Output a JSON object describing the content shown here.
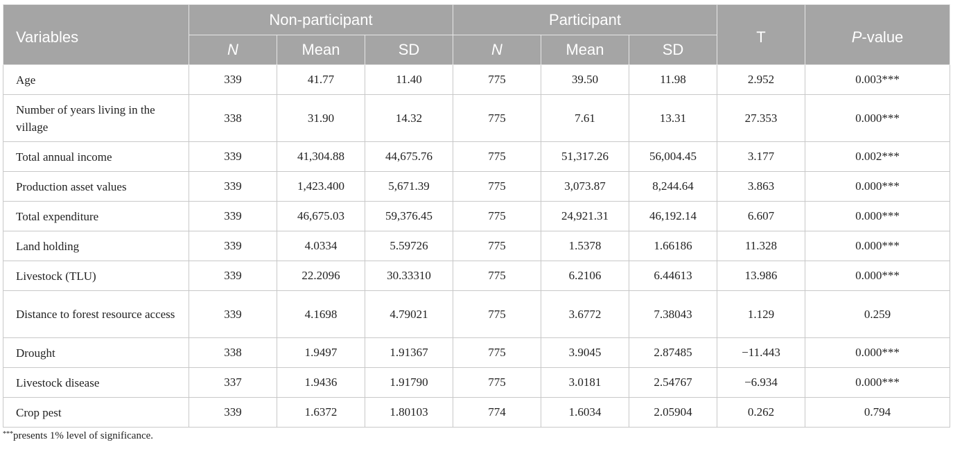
{
  "header": {
    "variables": "Variables",
    "non_participant": "Non-participant",
    "participant": "Participant",
    "t": "T",
    "p_value_italic": "P",
    "p_value_rest": "-value",
    "n": "N",
    "mean": "Mean",
    "sd": "SD"
  },
  "rows": [
    {
      "variable": "Age",
      "np_n": "339",
      "np_mean": "41.77",
      "np_sd": "11.40",
      "p_n": "775",
      "p_mean": "39.50",
      "p_sd": "11.98",
      "t": "2.952",
      "p_value": "0.003***"
    },
    {
      "variable": "Number of years living in the village",
      "np_n": "338",
      "np_mean": "31.90",
      "np_sd": "14.32",
      "p_n": "775",
      "p_mean": "7.61",
      "p_sd": "13.31",
      "t": "27.353",
      "p_value": "0.000***"
    },
    {
      "variable": "Total annual income",
      "np_n": "339",
      "np_mean": "41,304.88",
      "np_sd": "44,675.76",
      "p_n": "775",
      "p_mean": "51,317.26",
      "p_sd": "56,004.45",
      "t": "3.177",
      "p_value": "0.002***"
    },
    {
      "variable": "Production asset values",
      "np_n": "339",
      "np_mean": "1,423.400",
      "np_sd": "5,671.39",
      "p_n": "775",
      "p_mean": "3,073.87",
      "p_sd": "8,244.64",
      "t": "3.863",
      "p_value": "0.000***"
    },
    {
      "variable": "Total expenditure",
      "np_n": "339",
      "np_mean": "46,675.03",
      "np_sd": "59,376.45",
      "p_n": "775",
      "p_mean": "24,921.31",
      "p_sd": "46,192.14",
      "t": "6.607",
      "p_value": "0.000***"
    },
    {
      "variable": "Land holding",
      "np_n": "339",
      "np_mean": "4.0334",
      "np_sd": "5.59726",
      "p_n": "775",
      "p_mean": "1.5378",
      "p_sd": "1.66186",
      "t": "11.328",
      "p_value": "0.000***"
    },
    {
      "variable": "Livestock (TLU)",
      "np_n": "339",
      "np_mean": "22.2096",
      "np_sd": "30.33310",
      "p_n": "775",
      "p_mean": "6.2106",
      "p_sd": "6.44613",
      "t": "13.986",
      "p_value": "0.000***"
    },
    {
      "variable": "Distance to forest resource access",
      "np_n": "339",
      "np_mean": "4.1698",
      "np_sd": "4.79021",
      "p_n": "775",
      "p_mean": "3.6772",
      "p_sd": "7.38043",
      "t": "1.129",
      "p_value": "0.259"
    },
    {
      "variable": "Drought",
      "np_n": "338",
      "np_mean": "1.9497",
      "np_sd": "1.91367",
      "p_n": "775",
      "p_mean": "3.9045",
      "p_sd": "2.87485",
      "t": "−11.443",
      "p_value": "0.000***"
    },
    {
      "variable": "Livestock disease",
      "np_n": "337",
      "np_mean": "1.9436",
      "np_sd": "1.91790",
      "p_n": "775",
      "p_mean": "3.0181",
      "p_sd": "2.54767",
      "t": "−6.934",
      "p_value": "0.000***"
    },
    {
      "variable": "Crop pest",
      "np_n": "339",
      "np_mean": "1.6372",
      "np_sd": "1.80103",
      "p_n": "774",
      "p_mean": "1.6034",
      "p_sd": "2.05904",
      "t": "0.262",
      "p_value": "0.794"
    }
  ],
  "footnote": {
    "marker": "***",
    "text": "presents 1% level of significance."
  }
}
